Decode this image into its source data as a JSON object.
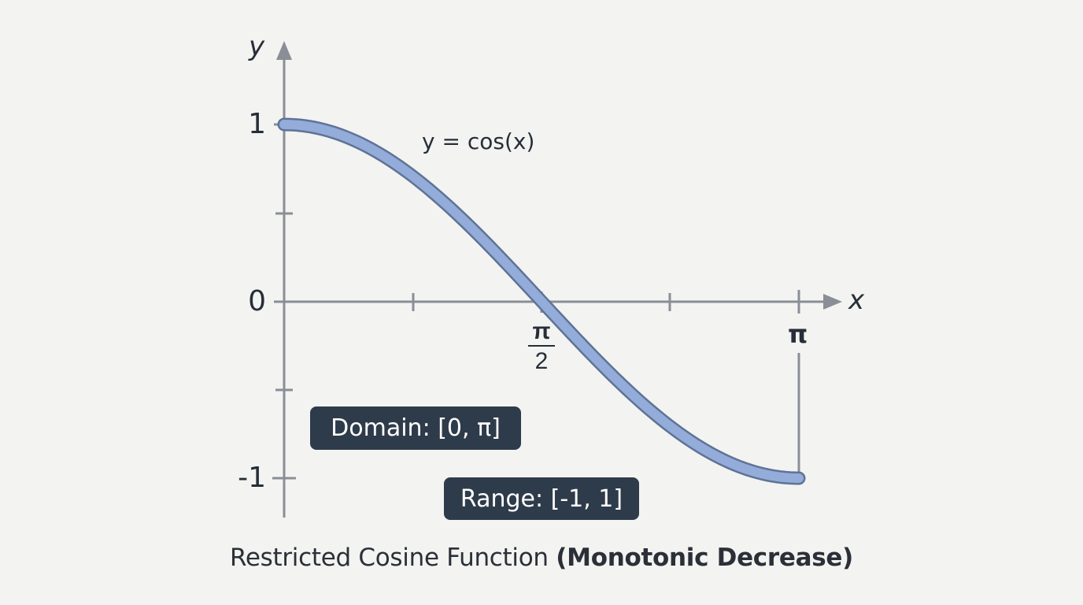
{
  "chart_data": {
    "type": "line",
    "title": "Restricted Cosine Function (Monotonic Decrease)",
    "function_label": "y = cos(x)",
    "xlabel": "x",
    "ylabel": "y",
    "xlim": [
      0,
      3.14159
    ],
    "ylim": [
      -1,
      1
    ],
    "x_ticks": [
      0,
      0.7854,
      1.5708,
      2.3562,
      3.14159
    ],
    "x_tick_labels": [
      "",
      "",
      "π/2",
      "",
      "π"
    ],
    "y_ticks": [
      1,
      0.5,
      0,
      -0.5,
      -1
    ],
    "y_tick_labels": [
      "1",
      "",
      "0",
      "",
      "-1"
    ],
    "grid": false,
    "series": [
      {
        "name": "y = cos(x)",
        "color": "#93acd9",
        "x": [
          0,
          0.3927,
          0.7854,
          1.1781,
          1.5708,
          1.9635,
          2.3562,
          2.7489,
          3.14159
        ],
        "y": [
          1,
          0.924,
          0.707,
          0.383,
          0,
          -0.383,
          -0.707,
          -0.924,
          -1
        ]
      }
    ],
    "annotations": [
      "Domain: [0, π]",
      "Range: [-1, 1]"
    ]
  },
  "labels": {
    "y_axis": "y",
    "x_axis": "x",
    "y_one": "1",
    "y_zero": "0",
    "y_neg_one": "-1",
    "x_half_pi_num": "π",
    "x_half_pi_den": "2",
    "x_pi": "π",
    "equation": "y = cos(x)"
  },
  "badges": {
    "domain": "Domain: [0, π]",
    "range": "Range: [-1, 1]"
  },
  "caption": {
    "normal": "Restricted Cosine Function ",
    "open_paren": "(",
    "bold": "Monotonic Decrease",
    "close_paren": ")"
  },
  "colors": {
    "background": "#f3f3f1",
    "axis": "#8a8e96",
    "curve_fill": "#93acd9",
    "curve_outline": "#5f7396",
    "badge_bg": "#2e3b4a",
    "text": "#272e38"
  }
}
